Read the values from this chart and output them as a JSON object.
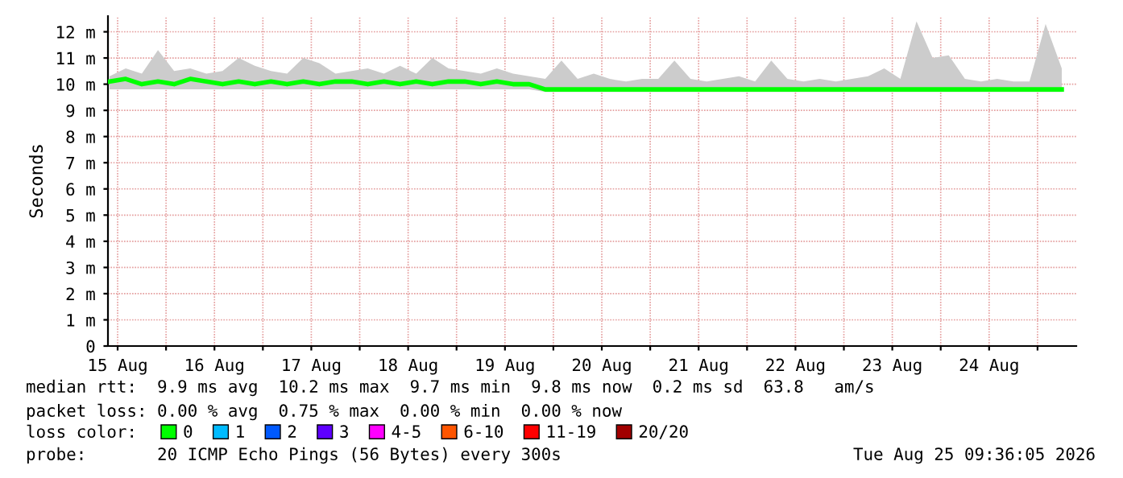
{
  "chart_data": {
    "type": "line",
    "ylabel": "Seconds",
    "x": [
      "2026-08-15T10:00",
      "2026-08-15T14:00",
      "2026-08-15T18:00",
      "2026-08-15T22:00",
      "2026-08-16T02:00",
      "2026-08-16T06:00",
      "2026-08-16T10:00",
      "2026-08-16T14:00",
      "2026-08-16T18:00",
      "2026-08-16T22:00",
      "2026-08-17T02:00",
      "2026-08-17T06:00",
      "2026-08-17T10:00",
      "2026-08-17T14:00",
      "2026-08-17T18:00",
      "2026-08-17T22:00",
      "2026-08-18T02:00",
      "2026-08-18T06:00",
      "2026-08-18T10:00",
      "2026-08-18T14:00",
      "2026-08-18T18:00",
      "2026-08-18T22:00",
      "2026-08-19T02:00",
      "2026-08-19T06:00",
      "2026-08-19T10:00",
      "2026-08-19T14:00",
      "2026-08-19T18:00",
      "2026-08-19T22:00",
      "2026-08-20T02:00",
      "2026-08-20T06:00",
      "2026-08-20T10:00",
      "2026-08-20T14:00",
      "2026-08-20T18:00",
      "2026-08-20T22:00",
      "2026-08-21T02:00",
      "2026-08-21T06:00",
      "2026-08-21T10:00",
      "2026-08-21T14:00",
      "2026-08-21T18:00",
      "2026-08-21T22:00",
      "2026-08-22T02:00",
      "2026-08-22T06:00",
      "2026-08-22T10:00",
      "2026-08-22T14:00",
      "2026-08-22T18:00",
      "2026-08-22T22:00",
      "2026-08-23T02:00",
      "2026-08-23T06:00",
      "2026-08-23T10:00",
      "2026-08-23T14:00",
      "2026-08-23T18:00",
      "2026-08-23T22:00",
      "2026-08-24T02:00",
      "2026-08-24T06:00",
      "2026-08-24T10:00",
      "2026-08-24T14:00",
      "2026-08-24T18:00",
      "2026-08-24T22:00",
      "2026-08-25T02:00",
      "2026-08-25T06:00"
    ],
    "series": [
      {
        "name": "0",
        "color": "#00ff00",
        "values": [
          10.1,
          10.2,
          10.0,
          10.1,
          10.0,
          10.2,
          10.1,
          10.0,
          10.1,
          10.0,
          10.1,
          10.0,
          10.1,
          10.0,
          10.1,
          10.1,
          10.0,
          10.1,
          10.0,
          10.1,
          10.0,
          10.1,
          10.1,
          10.0,
          10.1,
          10.0,
          10.0,
          9.8,
          9.8,
          9.8,
          9.8,
          9.8,
          9.8,
          9.8,
          9.8,
          9.8,
          9.8,
          9.8,
          9.8,
          9.8,
          9.8,
          9.8,
          9.8,
          9.8,
          9.8,
          9.8,
          9.8,
          9.8,
          9.8,
          9.8,
          9.8,
          9.8,
          9.8,
          9.8,
          9.8,
          9.8,
          9.8,
          9.8,
          9.8,
          9.8
        ],
        "lower": [
          9.8,
          9.8,
          9.8,
          9.8,
          9.8,
          9.8,
          9.8,
          9.8,
          9.8,
          9.8,
          9.8,
          9.8,
          9.8,
          9.8,
          9.8,
          9.8,
          9.8,
          9.8,
          9.8,
          9.8,
          9.8,
          9.8,
          9.8,
          9.8,
          9.8,
          9.8,
          9.8,
          9.7,
          9.7,
          9.7,
          9.7,
          9.7,
          9.7,
          9.7,
          9.7,
          9.7,
          9.7,
          9.7,
          9.7,
          9.7,
          9.7,
          9.7,
          9.7,
          9.7,
          9.7,
          9.7,
          9.7,
          9.7,
          9.7,
          9.7,
          9.7,
          9.7,
          9.7,
          9.7,
          9.7,
          9.7,
          9.7,
          9.7,
          9.7,
          9.7
        ],
        "upper": [
          10.3,
          10.6,
          10.4,
          11.3,
          10.5,
          10.6,
          10.4,
          10.5,
          11.0,
          10.7,
          10.5,
          10.4,
          11.0,
          10.8,
          10.4,
          10.5,
          10.6,
          10.4,
          10.7,
          10.4,
          11.0,
          10.6,
          10.5,
          10.4,
          10.6,
          10.4,
          10.3,
          10.2,
          10.9,
          10.2,
          10.4,
          10.2,
          10.1,
          10.2,
          10.2,
          10.9,
          10.2,
          10.1,
          10.2,
          10.3,
          10.1,
          10.9,
          10.2,
          10.1,
          10.2,
          10.1,
          10.2,
          10.3,
          10.6,
          10.2,
          12.4,
          11.0,
          11.1,
          10.2,
          10.1,
          10.2,
          10.1,
          10.1,
          12.3,
          10.6
        ]
      },
      {
        "name": "1",
        "color": "#00bbff",
        "values": [
          null,
          null,
          null,
          null,
          null,
          null,
          null,
          null,
          null,
          null,
          null,
          null,
          null,
          null,
          null,
          null,
          null,
          null,
          null,
          null,
          null,
          null,
          null,
          null,
          null,
          null,
          null,
          null,
          null,
          null,
          null,
          null,
          null,
          null,
          null,
          null,
          null,
          null,
          null,
          null,
          null,
          null,
          null,
          null,
          null,
          null,
          null,
          null,
          null,
          null,
          null,
          null,
          null,
          null,
          null,
          null,
          null,
          null,
          null,
          null
        ]
      },
      {
        "name": "2",
        "color": "#0059ff",
        "values": [
          null,
          null,
          null,
          null,
          null,
          null,
          null,
          null,
          null,
          null,
          null,
          null,
          null,
          null,
          null,
          null,
          null,
          null,
          null,
          null,
          null,
          null,
          null,
          null,
          null,
          null,
          null,
          null,
          null,
          null,
          null,
          null,
          null,
          null,
          null,
          null,
          null,
          null,
          null,
          null,
          null,
          null,
          null,
          null,
          null,
          null,
          null,
          null,
          null,
          null,
          null,
          null,
          null,
          null,
          null,
          null,
          null,
          null,
          null,
          null
        ]
      },
      {
        "name": "3",
        "color": "#5e00ff",
        "values": [
          null,
          null,
          null,
          null,
          null,
          null,
          null,
          null,
          null,
          null,
          null,
          null,
          null,
          null,
          null,
          null,
          null,
          null,
          null,
          null,
          null,
          null,
          null,
          null,
          null,
          null,
          null,
          null,
          null,
          null,
          null,
          null,
          null,
          null,
          null,
          null,
          null,
          null,
          null,
          null,
          null,
          null,
          null,
          null,
          null,
          null,
          null,
          null,
          null,
          null,
          null,
          null,
          null,
          null,
          null,
          null,
          null,
          null,
          null,
          null
        ]
      },
      {
        "name": "4-5",
        "color": "#ff00ff",
        "values": [
          null,
          null,
          null,
          null,
          null,
          null,
          null,
          null,
          null,
          null,
          null,
          null,
          null,
          null,
          null,
          null,
          null,
          null,
          null,
          null,
          null,
          null,
          null,
          null,
          null,
          null,
          null,
          null,
          null,
          null,
          null,
          null,
          null,
          null,
          null,
          null,
          null,
          null,
          null,
          null,
          null,
          null,
          null,
          null,
          null,
          null,
          null,
          null,
          null,
          null,
          null,
          null,
          null,
          null,
          null,
          null,
          null,
          null,
          null,
          null
        ]
      },
      {
        "name": "6-10",
        "color": "#ff5500",
        "values": [
          null,
          null,
          null,
          null,
          null,
          null,
          null,
          null,
          null,
          null,
          null,
          null,
          null,
          null,
          null,
          null,
          null,
          null,
          null,
          null,
          null,
          null,
          null,
          null,
          null,
          null,
          null,
          null,
          null,
          null,
          null,
          null,
          null,
          null,
          null,
          null,
          null,
          null,
          null,
          null,
          null,
          null,
          null,
          null,
          null,
          null,
          null,
          null,
          null,
          null,
          null,
          null,
          null,
          null,
          null,
          null,
          null,
          null,
          null,
          null
        ]
      },
      {
        "name": "11-19",
        "color": "#ff0000",
        "values": [
          null,
          null,
          null,
          null,
          null,
          null,
          null,
          null,
          null,
          null,
          null,
          null,
          null,
          null,
          null,
          null,
          null,
          null,
          null,
          null,
          null,
          null,
          null,
          null,
          null,
          null,
          null,
          null,
          null,
          null,
          null,
          null,
          null,
          null,
          null,
          null,
          null,
          null,
          null,
          null,
          null,
          null,
          null,
          null,
          null,
          null,
          null,
          null,
          null,
          null,
          null,
          null,
          null,
          null,
          null,
          null,
          null,
          null,
          null,
          null
        ]
      },
      {
        "name": "20/20",
        "color": "#a10000",
        "values": [
          null,
          null,
          null,
          null,
          null,
          null,
          null,
          null,
          null,
          null,
          null,
          null,
          null,
          null,
          null,
          null,
          null,
          null,
          null,
          null,
          null,
          null,
          null,
          null,
          null,
          null,
          null,
          null,
          null,
          null,
          null,
          null,
          null,
          null,
          null,
          null,
          null,
          null,
          null,
          null,
          null,
          null,
          null,
          null,
          null,
          null,
          null,
          null,
          null,
          null,
          null,
          null,
          null,
          null,
          null,
          null,
          null,
          null,
          null,
          null
        ]
      }
    ],
    "legend_title": "loss color:",
    "legend": "bottom",
    "xlim": [
      "2026-08-15T09:36",
      "2026-08-25T09:36"
    ],
    "xticks": [
      {
        "value": "2026-08-15T12:00",
        "label": "15 Aug"
      },
      {
        "value": "2026-08-16T00:00",
        "label": null
      },
      {
        "value": "2026-08-16T12:00",
        "label": "16 Aug"
      },
      {
        "value": "2026-08-17T00:00",
        "label": null
      },
      {
        "value": "2026-08-17T12:00",
        "label": "17 Aug"
      },
      {
        "value": "2026-08-18T00:00",
        "label": null
      },
      {
        "value": "2026-08-18T12:00",
        "label": "18 Aug"
      },
      {
        "value": "2026-08-19T00:00",
        "label": null
      },
      {
        "value": "2026-08-19T12:00",
        "label": "19 Aug"
      },
      {
        "value": "2026-08-20T00:00",
        "label": null
      },
      {
        "value": "2026-08-20T12:00",
        "label": "20 Aug"
      },
      {
        "value": "2026-08-21T00:00",
        "label": null
      },
      {
        "value": "2026-08-21T12:00",
        "label": "21 Aug"
      },
      {
        "value": "2026-08-22T00:00",
        "label": null
      },
      {
        "value": "2026-08-22T12:00",
        "label": "22 Aug"
      },
      {
        "value": "2026-08-23T00:00",
        "label": null
      },
      {
        "value": "2026-08-23T12:00",
        "label": "23 Aug"
      },
      {
        "value": "2026-08-24T00:00",
        "label": null
      },
      {
        "value": "2026-08-24T12:00",
        "label": "24 Aug"
      },
      {
        "value": "2026-08-25T00:00",
        "label": null
      }
    ],
    "ylim": [
      0,
      12.6
    ],
    "yticks": [
      {
        "value": 0,
        "label": "0"
      },
      {
        "value": 1,
        "label": "1 m"
      },
      {
        "value": 2,
        "label": "2 m"
      },
      {
        "value": 3,
        "label": "3 m"
      },
      {
        "value": 4,
        "label": "4 m"
      },
      {
        "value": 5,
        "label": "5 m"
      },
      {
        "value": 6,
        "label": "6 m"
      },
      {
        "value": 7,
        "label": "7 m"
      },
      {
        "value": 8,
        "label": "8 m"
      },
      {
        "value": 9,
        "label": "9 m"
      },
      {
        "value": 10,
        "label": "10 m"
      },
      {
        "value": 11,
        "label": "11 m"
      },
      {
        "value": 12,
        "label": "12 m"
      }
    ],
    "grid": true,
    "annotations": [
      "median rtt:  9.9 ms avg  10.2 ms max  9.7 ms min  9.8 ms now  0.2 ms sd  63.8   am/s",
      "packet loss: 0.00 % avg  0.75 % max  0.00 % min  0.00 % now",
      "probe:       20 ICMP Echo Pings (56 Bytes) every 300s",
      "Tue Aug 25 09:36:05 2026"
    ]
  }
}
